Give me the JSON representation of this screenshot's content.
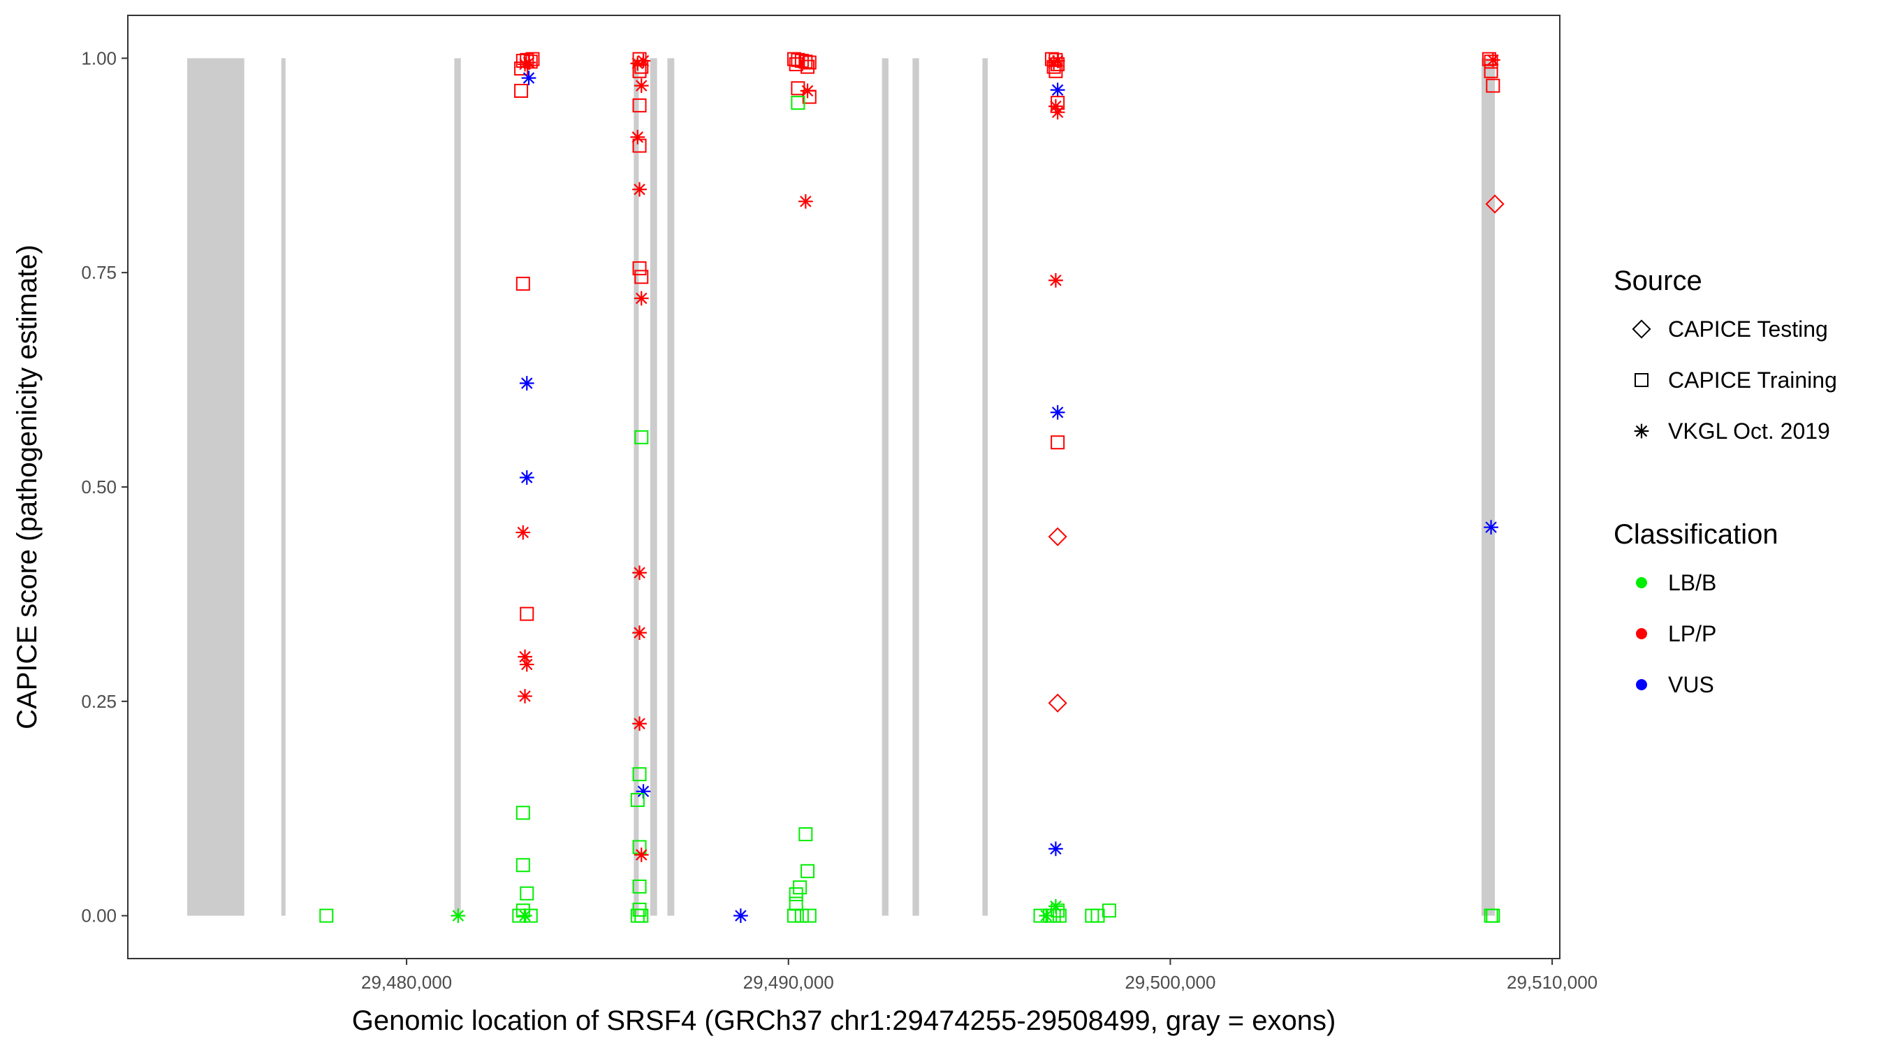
{
  "chart_data": {
    "type": "scatter",
    "title": "",
    "xlabel": "Genomic location of SRSF4 (GRCh37 chr1:29474255-29508499, gray = exons)",
    "ylabel": "CAPICE score (pathogenicity estimate)",
    "xlim": [
      29472700,
      29510200
    ],
    "ylim": [
      -0.05,
      1.05
    ],
    "x_ticks": [
      29480000,
      29490000,
      29500000,
      29510000
    ],
    "x_tick_labels": [
      "29,480,000",
      "29,490,000",
      "29,500,000",
      "29,510,000"
    ],
    "y_ticks": [
      0,
      0.25,
      0.5,
      0.75,
      1.0
    ],
    "y_tick_labels": [
      "0.00",
      "0.25",
      "0.50",
      "0.75",
      "1.00"
    ],
    "grid": false,
    "legend_position": "right",
    "exons": [
      {
        "start": 29474255,
        "end": 29475750
      },
      {
        "start": 29476720,
        "end": 29476830
      },
      {
        "start": 29481250,
        "end": 29481420
      },
      {
        "start": 29485950,
        "end": 29486080
      },
      {
        "start": 29486380,
        "end": 29486560
      },
      {
        "start": 29486830,
        "end": 29487010
      },
      {
        "start": 29492450,
        "end": 29492620
      },
      {
        "start": 29493250,
        "end": 29493420
      },
      {
        "start": 29495080,
        "end": 29495220
      },
      {
        "start": 29508150,
        "end": 29508499
      }
    ],
    "source_legend": {
      "title": "Source",
      "entries": [
        {
          "label": "CAPICE Testing",
          "shape": "diamond"
        },
        {
          "label": "CAPICE Training",
          "shape": "square"
        },
        {
          "label": "VKGL Oct. 2019",
          "shape": "asterisk"
        }
      ]
    },
    "classification_legend": {
      "title": "Classification",
      "entries": [
        {
          "label": "LB/B",
          "color": "#00ee00"
        },
        {
          "label": "LP/P",
          "color": "#ff0000"
        },
        {
          "label": "VUS",
          "color": "#0000ff"
        }
      ]
    },
    "colors": {
      "LB/B": "#00ee00",
      "LP/P": "#ff0000",
      "VUS": "#0000ff",
      "exon": "#cccccc"
    },
    "points": [
      {
        "x": 29477900,
        "y": 0.0,
        "s": "square",
        "c": "LB/B"
      },
      {
        "x": 29481350,
        "y": 0.0,
        "s": "asterisk",
        "c": "LB/B"
      },
      {
        "x": 29483050,
        "y": 0.997,
        "s": "square",
        "c": "LP/P"
      },
      {
        "x": 29483150,
        "y": 0.998,
        "s": "square",
        "c": "LP/P"
      },
      {
        "x": 29483250,
        "y": 0.996,
        "s": "square",
        "c": "LP/P"
      },
      {
        "x": 29483300,
        "y": 0.999,
        "s": "square",
        "c": "LP/P"
      },
      {
        "x": 29483100,
        "y": 0.993,
        "s": "asterisk",
        "c": "LP/P"
      },
      {
        "x": 29483200,
        "y": 0.995,
        "s": "asterisk",
        "c": "LP/P"
      },
      {
        "x": 29483000,
        "y": 0.988,
        "s": "square",
        "c": "LP/P"
      },
      {
        "x": 29483200,
        "y": 0.977,
        "s": "asterisk",
        "c": "VUS"
      },
      {
        "x": 29483000,
        "y": 0.962,
        "s": "square",
        "c": "LP/P"
      },
      {
        "x": 29483050,
        "y": 0.737,
        "s": "square",
        "c": "LP/P"
      },
      {
        "x": 29483150,
        "y": 0.621,
        "s": "asterisk",
        "c": "VUS"
      },
      {
        "x": 29483150,
        "y": 0.511,
        "s": "asterisk",
        "c": "VUS"
      },
      {
        "x": 29483050,
        "y": 0.447,
        "s": "asterisk",
        "c": "LP/P"
      },
      {
        "x": 29483150,
        "y": 0.352,
        "s": "square",
        "c": "LP/P"
      },
      {
        "x": 29483100,
        "y": 0.302,
        "s": "asterisk",
        "c": "LP/P"
      },
      {
        "x": 29483150,
        "y": 0.293,
        "s": "asterisk",
        "c": "LP/P"
      },
      {
        "x": 29483100,
        "y": 0.256,
        "s": "asterisk",
        "c": "LP/P"
      },
      {
        "x": 29483050,
        "y": 0.12,
        "s": "square",
        "c": "LB/B"
      },
      {
        "x": 29483050,
        "y": 0.059,
        "s": "square",
        "c": "LB/B"
      },
      {
        "x": 29483150,
        "y": 0.026,
        "s": "square",
        "c": "LB/B"
      },
      {
        "x": 29483050,
        "y": 0.006,
        "s": "square",
        "c": "LB/B"
      },
      {
        "x": 29482950,
        "y": 0.0,
        "s": "square",
        "c": "LB/B"
      },
      {
        "x": 29483100,
        "y": 0.0,
        "s": "asterisk",
        "c": "LB/B"
      },
      {
        "x": 29483250,
        "y": 0.0,
        "s": "square",
        "c": "LB/B"
      },
      {
        "x": 29486100,
        "y": 0.999,
        "s": "square",
        "c": "LP/P"
      },
      {
        "x": 29486200,
        "y": 0.997,
        "s": "asterisk",
        "c": "LP/P"
      },
      {
        "x": 29486050,
        "y": 0.994,
        "s": "asterisk",
        "c": "LP/P"
      },
      {
        "x": 29486150,
        "y": 0.99,
        "s": "square",
        "c": "LP/P"
      },
      {
        "x": 29486100,
        "y": 0.985,
        "s": "square",
        "c": "LP/P"
      },
      {
        "x": 29486150,
        "y": 0.968,
        "s": "asterisk",
        "c": "LP/P"
      },
      {
        "x": 29486100,
        "y": 0.945,
        "s": "square",
        "c": "LP/P"
      },
      {
        "x": 29486050,
        "y": 0.908,
        "s": "asterisk",
        "c": "LP/P"
      },
      {
        "x": 29486100,
        "y": 0.898,
        "s": "square",
        "c": "LP/P"
      },
      {
        "x": 29486100,
        "y": 0.847,
        "s": "asterisk",
        "c": "LP/P"
      },
      {
        "x": 29486100,
        "y": 0.755,
        "s": "square",
        "c": "LP/P"
      },
      {
        "x": 29486150,
        "y": 0.745,
        "s": "square",
        "c": "LP/P"
      },
      {
        "x": 29486150,
        "y": 0.72,
        "s": "asterisk",
        "c": "LP/P"
      },
      {
        "x": 29486150,
        "y": 0.558,
        "s": "square",
        "c": "LB/B"
      },
      {
        "x": 29486100,
        "y": 0.4,
        "s": "asterisk",
        "c": "LP/P"
      },
      {
        "x": 29486100,
        "y": 0.33,
        "s": "asterisk",
        "c": "LP/P"
      },
      {
        "x": 29486100,
        "y": 0.224,
        "s": "asterisk",
        "c": "LP/P"
      },
      {
        "x": 29486100,
        "y": 0.165,
        "s": "square",
        "c": "LB/B"
      },
      {
        "x": 29486200,
        "y": 0.145,
        "s": "asterisk",
        "c": "VUS"
      },
      {
        "x": 29486050,
        "y": 0.135,
        "s": "square",
        "c": "LB/B"
      },
      {
        "x": 29486100,
        "y": 0.08,
        "s": "square",
        "c": "LB/B"
      },
      {
        "x": 29486150,
        "y": 0.071,
        "s": "asterisk",
        "c": "LP/P"
      },
      {
        "x": 29486100,
        "y": 0.034,
        "s": "square",
        "c": "LB/B"
      },
      {
        "x": 29486100,
        "y": 0.007,
        "s": "square",
        "c": "LB/B"
      },
      {
        "x": 29486050,
        "y": 0.0,
        "s": "square",
        "c": "LB/B"
      },
      {
        "x": 29486150,
        "y": 0.0,
        "s": "square",
        "c": "LB/B"
      },
      {
        "x": 29488750,
        "y": 0.0,
        "s": "asterisk",
        "c": "VUS"
      },
      {
        "x": 29490150,
        "y": 0.999,
        "s": "square",
        "c": "LP/P"
      },
      {
        "x": 29490250,
        "y": 0.998,
        "s": "square",
        "c": "LP/P"
      },
      {
        "x": 29490350,
        "y": 0.997,
        "s": "square",
        "c": "LP/P"
      },
      {
        "x": 29490450,
        "y": 0.996,
        "s": "square",
        "c": "LP/P"
      },
      {
        "x": 29490550,
        "y": 0.995,
        "s": "square",
        "c": "LP/P"
      },
      {
        "x": 29490200,
        "y": 0.993,
        "s": "square",
        "c": "LP/P"
      },
      {
        "x": 29490500,
        "y": 0.99,
        "s": "square",
        "c": "LP/P"
      },
      {
        "x": 29490250,
        "y": 0.965,
        "s": "square",
        "c": "LP/P"
      },
      {
        "x": 29490500,
        "y": 0.962,
        "s": "asterisk",
        "c": "LP/P"
      },
      {
        "x": 29490550,
        "y": 0.955,
        "s": "square",
        "c": "LP/P"
      },
      {
        "x": 29490250,
        "y": 0.948,
        "s": "square",
        "c": "LB/B"
      },
      {
        "x": 29490450,
        "y": 0.833,
        "s": "asterisk",
        "c": "LP/P"
      },
      {
        "x": 29490450,
        "y": 0.095,
        "s": "square",
        "c": "LB/B"
      },
      {
        "x": 29490500,
        "y": 0.052,
        "s": "square",
        "c": "LB/B"
      },
      {
        "x": 29490300,
        "y": 0.033,
        "s": "square",
        "c": "LB/B"
      },
      {
        "x": 29490200,
        "y": 0.025,
        "s": "square",
        "c": "LB/B"
      },
      {
        "x": 29490200,
        "y": 0.014,
        "s": "square",
        "c": "LB/B"
      },
      {
        "x": 29490150,
        "y": 0.0,
        "s": "square",
        "c": "LB/B"
      },
      {
        "x": 29490350,
        "y": 0.0,
        "s": "square",
        "c": "LB/B"
      },
      {
        "x": 29490550,
        "y": 0.0,
        "s": "square",
        "c": "LB/B"
      },
      {
        "x": 29496900,
        "y": 0.999,
        "s": "square",
        "c": "LP/P"
      },
      {
        "x": 29497000,
        "y": 0.998,
        "s": "square",
        "c": "LP/P"
      },
      {
        "x": 29497050,
        "y": 0.997,
        "s": "asterisk",
        "c": "LP/P"
      },
      {
        "x": 29496950,
        "y": 0.995,
        "s": "asterisk",
        "c": "LP/P"
      },
      {
        "x": 29497050,
        "y": 0.993,
        "s": "square",
        "c": "LP/P"
      },
      {
        "x": 29496950,
        "y": 0.99,
        "s": "square",
        "c": "LP/P"
      },
      {
        "x": 29497000,
        "y": 0.985,
        "s": "square",
        "c": "LP/P"
      },
      {
        "x": 29497050,
        "y": 0.963,
        "s": "asterisk",
        "c": "VUS"
      },
      {
        "x": 29497050,
        "y": 0.948,
        "s": "square",
        "c": "LP/P"
      },
      {
        "x": 29497000,
        "y": 0.944,
        "s": "asterisk",
        "c": "LP/P"
      },
      {
        "x": 29497050,
        "y": 0.937,
        "s": "asterisk",
        "c": "LP/P"
      },
      {
        "x": 29497000,
        "y": 0.741,
        "s": "asterisk",
        "c": "LP/P"
      },
      {
        "x": 29497050,
        "y": 0.587,
        "s": "asterisk",
        "c": "VUS"
      },
      {
        "x": 29497050,
        "y": 0.552,
        "s": "square",
        "c": "LP/P"
      },
      {
        "x": 29497050,
        "y": 0.442,
        "s": "diamond",
        "c": "LP/P"
      },
      {
        "x": 29497050,
        "y": 0.248,
        "s": "diamond",
        "c": "LP/P"
      },
      {
        "x": 29497000,
        "y": 0.078,
        "s": "asterisk",
        "c": "VUS"
      },
      {
        "x": 29497000,
        "y": 0.011,
        "s": "asterisk",
        "c": "LB/B"
      },
      {
        "x": 29497050,
        "y": 0.006,
        "s": "square",
        "c": "LB/B"
      },
      {
        "x": 29496600,
        "y": 0.0,
        "s": "square",
        "c": "LB/B"
      },
      {
        "x": 29496750,
        "y": 0.0,
        "s": "asterisk",
        "c": "LB/B"
      },
      {
        "x": 29496850,
        "y": 0.0,
        "s": "square",
        "c": "LB/B"
      },
      {
        "x": 29496950,
        "y": 0.0,
        "s": "square",
        "c": "LB/B"
      },
      {
        "x": 29497100,
        "y": 0.0,
        "s": "square",
        "c": "LB/B"
      },
      {
        "x": 29497950,
        "y": 0.0,
        "s": "square",
        "c": "LB/B"
      },
      {
        "x": 29498100,
        "y": 0.0,
        "s": "square",
        "c": "LB/B"
      },
      {
        "x": 29498400,
        "y": 0.006,
        "s": "square",
        "c": "LB/B"
      },
      {
        "x": 29508350,
        "y": 0.999,
        "s": "square",
        "c": "LP/P"
      },
      {
        "x": 29508450,
        "y": 0.998,
        "s": "asterisk",
        "c": "LP/P"
      },
      {
        "x": 29508400,
        "y": 0.996,
        "s": "square",
        "c": "LP/P"
      },
      {
        "x": 29508400,
        "y": 0.985,
        "s": "square",
        "c": "LP/P"
      },
      {
        "x": 29508450,
        "y": 0.968,
        "s": "square",
        "c": "LP/P"
      },
      {
        "x": 29508500,
        "y": 0.83,
        "s": "diamond",
        "c": "LP/P"
      },
      {
        "x": 29508400,
        "y": 0.453,
        "s": "asterisk",
        "c": "VUS"
      },
      {
        "x": 29508400,
        "y": 0.0,
        "s": "square",
        "c": "LB/B"
      },
      {
        "x": 29508450,
        "y": 0.0,
        "s": "square",
        "c": "LB/B"
      }
    ]
  }
}
